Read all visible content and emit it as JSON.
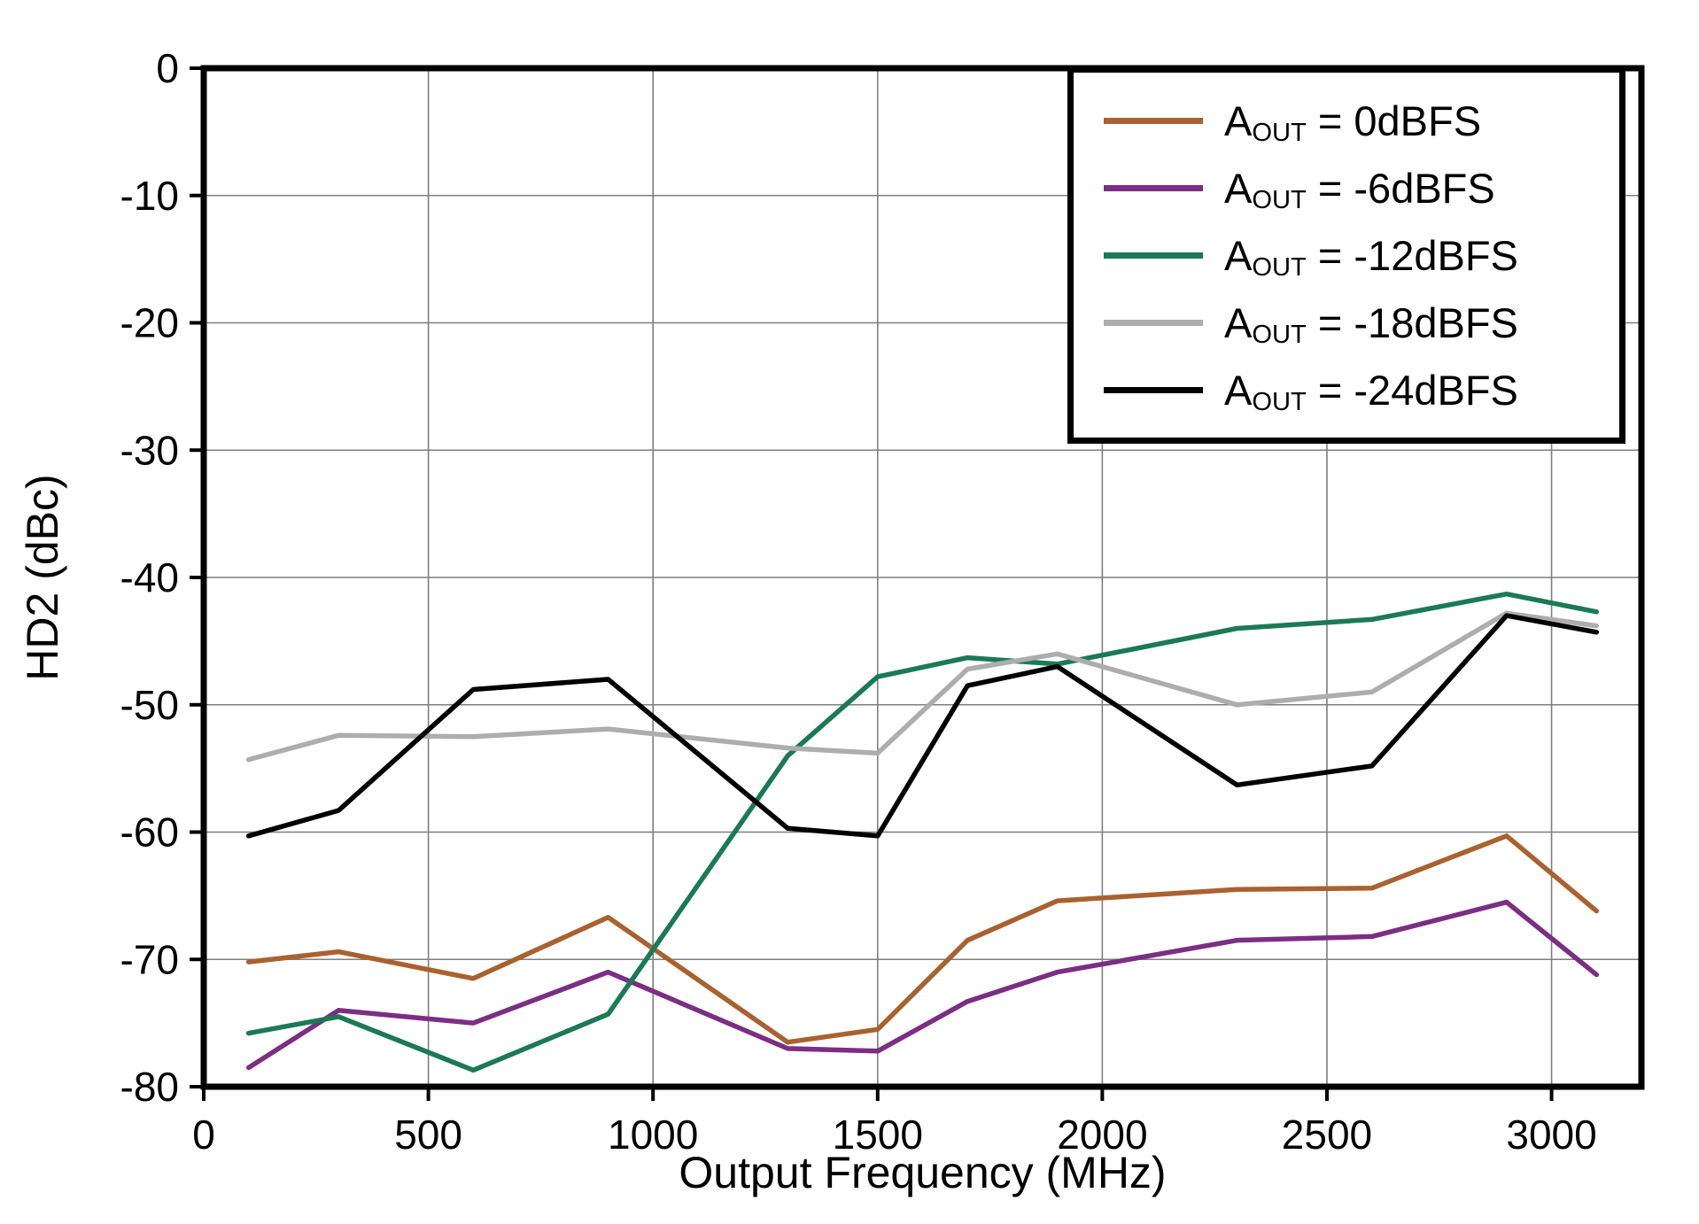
{
  "chart_data": {
    "type": "line",
    "title": "",
    "xlabel": "Output Frequency (MHz)",
    "ylabel": "HD2 (dBc)",
    "xlim": [
      0,
      3200
    ],
    "ylim": [
      -80,
      0
    ],
    "xticks": [
      0,
      500,
      1000,
      1500,
      2000,
      2500,
      3000
    ],
    "yticks": [
      0,
      -10,
      -20,
      -30,
      -40,
      -50,
      -60,
      -70,
      -80
    ],
    "grid": true,
    "legend_position": "top-right",
    "x": [
      100,
      300,
      600,
      900,
      1300,
      1500,
      1700,
      1900,
      2300,
      2600,
      2900,
      3100
    ],
    "series": [
      {
        "name_prefix": "A",
        "name_sub": "OUT",
        "name_suffix": " = 0dBFS",
        "color": "#A9622F",
        "values": [
          -70.2,
          -69.4,
          -71.5,
          -66.7,
          -76.5,
          -75.5,
          -68.5,
          -65.4,
          -64.5,
          -64.4,
          -60.3,
          -66.2
        ]
      },
      {
        "name_prefix": "A",
        "name_sub": "OUT",
        "name_suffix": " = -6dBFS",
        "color": "#7B2E83",
        "values": [
          -78.5,
          -74.0,
          -75.0,
          -71.0,
          -77.0,
          -77.2,
          -73.3,
          -71.0,
          -68.5,
          -68.2,
          -65.5,
          -71.2
        ]
      },
      {
        "name_prefix": "A",
        "name_sub": "OUT",
        "name_suffix": " = -12dBFS",
        "color": "#1B7A55",
        "values": [
          -75.8,
          -74.5,
          -78.7,
          -74.3,
          -54.0,
          -47.8,
          -46.3,
          -46.8,
          -44.0,
          -43.3,
          -41.3,
          -42.7
        ]
      },
      {
        "name_prefix": "A",
        "name_sub": "OUT",
        "name_suffix": " = -18dBFS",
        "color": "#ADADAD",
        "values": [
          -54.3,
          -52.4,
          -52.5,
          -51.9,
          -53.4,
          -53.8,
          -47.2,
          -46.0,
          -50.0,
          -49.0,
          -42.8,
          -43.8
        ]
      },
      {
        "name_prefix": "A",
        "name_sub": "OUT",
        "name_suffix": " = -24dBFS",
        "color": "#000000",
        "values": [
          -60.3,
          -58.3,
          -48.8,
          -48.0,
          -59.7,
          -60.3,
          -48.5,
          -47.0,
          -56.3,
          -54.8,
          -43.0,
          -44.3
        ]
      }
    ]
  }
}
